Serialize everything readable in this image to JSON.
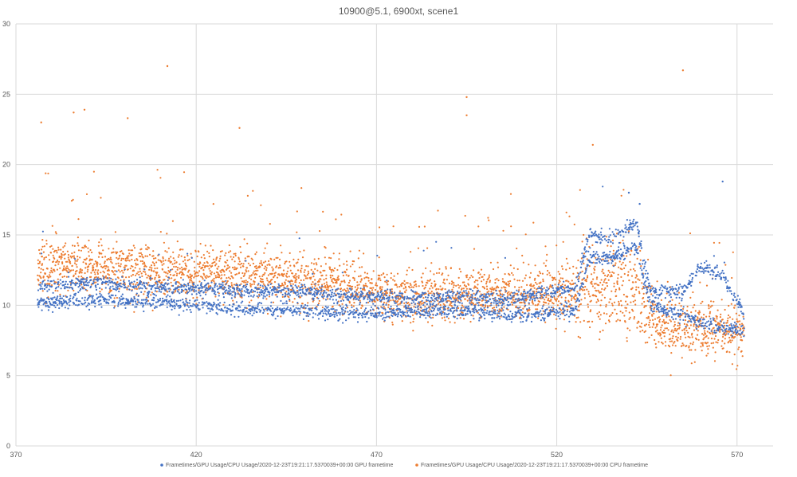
{
  "chart_data": {
    "type": "scatter",
    "title": "10900@5.1, 6900xt, scene1",
    "xlabel": "",
    "ylabel": "",
    "xlim": [
      370,
      580
    ],
    "ylim": [
      0,
      30
    ],
    "x_ticks": [
      "370",
      "420",
      "470",
      "520",
      "570"
    ],
    "y_ticks": [
      "0",
      "5",
      "10",
      "15",
      "20",
      "25",
      "30"
    ],
    "grid": true,
    "legend_position": "bottom",
    "x_range_data": [
      376,
      572
    ],
    "series": [
      {
        "name": "Frametimes/GPU Usage/CPU Usage/2020-12-23T19:21:17.5370039+00:00 GPU frametime",
        "color": "#4472c4",
        "trend": [
          {
            "x": 376,
            "lower": 10.2,
            "upper": 11.4
          },
          {
            "x": 390,
            "lower": 10.4,
            "upper": 11.6
          },
          {
            "x": 410,
            "lower": 10.2,
            "upper": 11.3
          },
          {
            "x": 430,
            "lower": 9.8,
            "upper": 11.1
          },
          {
            "x": 450,
            "lower": 9.6,
            "upper": 11.0
          },
          {
            "x": 465,
            "lower": 9.4,
            "upper": 10.6
          },
          {
            "x": 480,
            "lower": 9.5,
            "upper": 10.5
          },
          {
            "x": 495,
            "lower": 9.6,
            "upper": 10.6
          },
          {
            "x": 505,
            "lower": 9.3,
            "upper": 10.3
          },
          {
            "x": 515,
            "lower": 9.4,
            "upper": 10.8
          },
          {
            "x": 525,
            "lower": 9.6,
            "upper": 11.2
          },
          {
            "x": 529,
            "lower": 13.5,
            "upper": 15.0
          },
          {
            "x": 535,
            "lower": 13.2,
            "upper": 14.8
          },
          {
            "x": 542,
            "lower": 14.2,
            "upper": 15.8
          },
          {
            "x": 546,
            "lower": 10.0,
            "upper": 11.0
          },
          {
            "x": 555,
            "lower": 9.2,
            "upper": 11.0
          },
          {
            "x": 560,
            "lower": 8.8,
            "upper": 12.8
          },
          {
            "x": 566,
            "lower": 8.4,
            "upper": 12.0
          },
          {
            "x": 572,
            "lower": 8.2,
            "upper": 9.5
          }
        ]
      },
      {
        "name": "Frametimes/GPU Usage/CPU Usage/2020-12-23T19:21:17.5370039+00:00 CPU frametime",
        "color": "#ed7d31",
        "trend": [
          {
            "x": 376,
            "center": 12.8,
            "spread": 1.8
          },
          {
            "x": 400,
            "center": 12.6,
            "spread": 1.8
          },
          {
            "x": 430,
            "center": 12.2,
            "spread": 1.8
          },
          {
            "x": 460,
            "center": 11.5,
            "spread": 1.8
          },
          {
            "x": 480,
            "center": 10.6,
            "spread": 1.6
          },
          {
            "x": 500,
            "center": 10.8,
            "spread": 1.6
          },
          {
            "x": 520,
            "center": 10.8,
            "spread": 1.6
          },
          {
            "x": 530,
            "center": 11.5,
            "spread": 3.0
          },
          {
            "x": 542,
            "center": 11.2,
            "spread": 3.0
          },
          {
            "x": 548,
            "center": 8.5,
            "spread": 1.8
          },
          {
            "x": 572,
            "center": 8.2,
            "spread": 1.8
          }
        ]
      }
    ],
    "outliers": [
      {
        "series": 1,
        "x": 377,
        "y": 23.0
      },
      {
        "series": 1,
        "x": 386,
        "y": 23.7
      },
      {
        "series": 1,
        "x": 389,
        "y": 23.9
      },
      {
        "series": 1,
        "x": 401,
        "y": 23.3
      },
      {
        "series": 1,
        "x": 412,
        "y": 27.0
      },
      {
        "series": 1,
        "x": 432,
        "y": 22.6
      },
      {
        "series": 1,
        "x": 495,
        "y": 24.8
      },
      {
        "series": 1,
        "x": 495,
        "y": 23.5
      },
      {
        "series": 1,
        "x": 555,
        "y": 26.7
      },
      {
        "series": 1,
        "x": 530,
        "y": 21.4
      },
      {
        "series": 0,
        "x": 566,
        "y": 18.8
      },
      {
        "series": 0,
        "x": 543,
        "y": 17.2
      },
      {
        "series": 0,
        "x": 540,
        "y": 18.0
      }
    ]
  }
}
